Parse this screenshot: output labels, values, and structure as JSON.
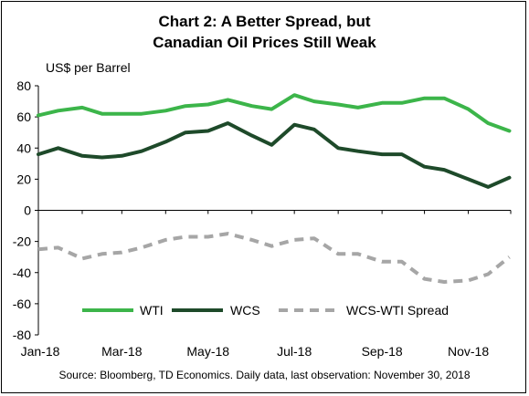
{
  "chart_data": {
    "type": "line",
    "title_line1": "Chart 2: A Better Spread, but",
    "title_line2": "Canadian Oil Prices Still Weak",
    "ylabel": "US$ per Barrel",
    "source": "Source: Bloomberg, TD Economics. Daily data, last observation: November 30, 2018",
    "ylim": [
      -80,
      80
    ],
    "y_ticks": [
      80,
      60,
      40,
      20,
      0,
      -20,
      -40,
      -60,
      -80
    ],
    "x_ticks": [
      "Jan-18",
      "Mar-18",
      "May-18",
      "Jul-18",
      "Sep-18",
      "Nov-18"
    ],
    "x": [
      "2018-01-01",
      "2018-01-15",
      "2018-02-01",
      "2018-02-15",
      "2018-03-01",
      "2018-03-15",
      "2018-04-01",
      "2018-04-15",
      "2018-05-01",
      "2018-05-15",
      "2018-06-01",
      "2018-06-15",
      "2018-07-01",
      "2018-07-15",
      "2018-08-01",
      "2018-08-15",
      "2018-09-01",
      "2018-09-15",
      "2018-10-01",
      "2018-10-15",
      "2018-11-01",
      "2018-11-15",
      "2018-11-30"
    ],
    "series": [
      {
        "name": "WTI",
        "color": "#3cb54a",
        "style": "solid",
        "values": [
          61,
          64,
          66,
          62,
          62,
          62,
          64,
          67,
          68,
          71,
          67,
          65,
          74,
          70,
          68,
          66,
          69,
          69,
          72,
          72,
          65,
          56,
          51
        ]
      },
      {
        "name": "WCS",
        "color": "#1e4a2a",
        "style": "solid",
        "values": [
          36,
          40,
          35,
          34,
          35,
          38,
          44,
          50,
          51,
          56,
          48,
          42,
          55,
          52,
          40,
          38,
          36,
          36,
          28,
          26,
          20,
          15,
          21
        ]
      },
      {
        "name": "WCS-WTI Spread",
        "color": "#a6a6a6",
        "style": "dashed",
        "values": [
          -25,
          -24,
          -31,
          -28,
          -27,
          -24,
          -19,
          -17,
          -17,
          -15,
          -19,
          -23,
          -19,
          -18,
          -28,
          -28,
          -33,
          -33,
          -44,
          -46,
          -45,
          -41,
          -30
        ]
      }
    ],
    "grid": false,
    "legend_position": "bottom-inside"
  }
}
